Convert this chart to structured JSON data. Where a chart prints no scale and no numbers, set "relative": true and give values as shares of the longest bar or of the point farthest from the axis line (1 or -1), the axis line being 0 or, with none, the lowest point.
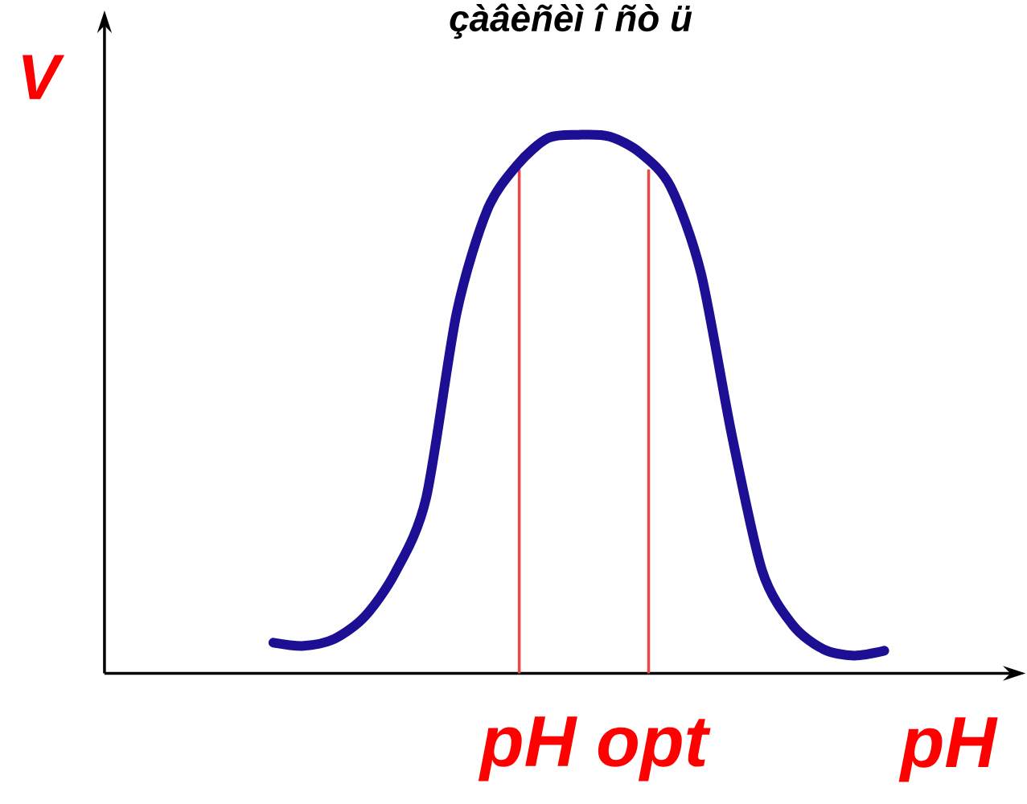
{
  "chart_data": {
    "type": "line",
    "title": "çàâèñèì î ñò ü",
    "xlabel": "pH",
    "ylabel": "V",
    "relative": true,
    "marker": "none",
    "line_style": "solid",
    "categories": [
      null,
      null,
      null,
      null,
      null,
      null,
      null,
      null,
      null,
      null,
      null,
      null,
      null,
      null,
      null,
      null,
      null,
      null,
      null,
      null,
      null
    ],
    "series": [
      {
        "color": "#1c0f94",
        "values": [
          0.057,
          0.051,
          0.064,
          0.106,
          0.188,
          0.325,
          0.669,
          0.86,
          0.945,
          0.994,
          1.0,
          0.997,
          0.967,
          0.904,
          0.743,
          0.445,
          0.191,
          0.09,
          0.045,
          0.033,
          0.042
        ]
      }
    ],
    "annotations": [
      "pH opt"
    ]
  }
}
